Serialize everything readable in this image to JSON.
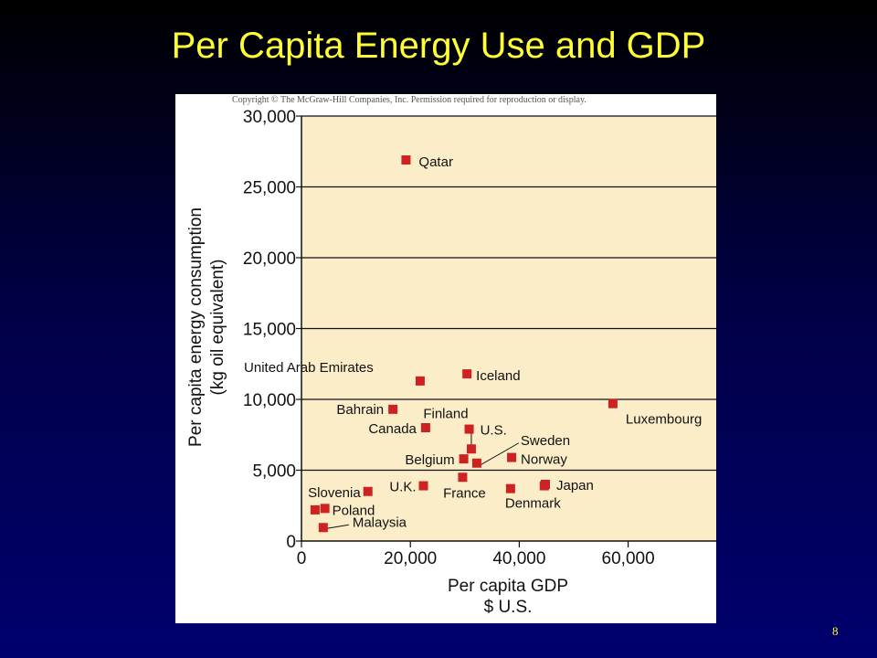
{
  "slide": {
    "title": "Per Capita Energy Use and GDP",
    "page_number": "8"
  },
  "colors": {
    "title": "#ffff33",
    "plot_background": "#fbedc8",
    "marker": "#cc2222",
    "gridline": "#111111"
  },
  "chart_data": {
    "type": "scatter",
    "copyright": "Copyright © The McGraw-Hill Companies, Inc. Permission required for reproduction or display.",
    "xlabel": [
      "Per capita GDP",
      "$ U.S."
    ],
    "ylabel": [
      "Per capita energy consumption",
      "(kg oil equivalent)"
    ],
    "xlim": [
      0,
      80000
    ],
    "ylim": [
      0,
      30000
    ],
    "xticks": [
      0,
      20000,
      40000,
      60000
    ],
    "xtick_labels": [
      "0",
      "20,000",
      "40,000",
      "60,000"
    ],
    "yticks": [
      0,
      5000,
      10000,
      15000,
      20000,
      25000,
      30000
    ],
    "ytick_labels": [
      "0",
      "5,000",
      "10,000",
      "15,000",
      "20,000",
      "25,000",
      "30,000"
    ],
    "grid": "horizontal",
    "points": [
      {
        "label": "Qatar",
        "x": 19200,
        "y": 26900
      },
      {
        "label": "United Arab Emirates",
        "x": 21800,
        "y": 11300
      },
      {
        "label": "Iceland",
        "x": 30400,
        "y": 11800
      },
      {
        "label": "Bahrain",
        "x": 16800,
        "y": 9300
      },
      {
        "label": "Canada",
        "x": 22800,
        "y": 8000
      },
      {
        "label": "Finland",
        "x": 31200,
        "y": 6500
      },
      {
        "label": "U.S.",
        "x": 30800,
        "y": 7900
      },
      {
        "label": "Sweden",
        "x": 32200,
        "y": 5500
      },
      {
        "label": "Belgium",
        "x": 29800,
        "y": 5800
      },
      {
        "label": "Norway",
        "x": 38600,
        "y": 5900
      },
      {
        "label": "U.K.",
        "x": 22400,
        "y": 3900
      },
      {
        "label": "France",
        "x": 29600,
        "y": 4500
      },
      {
        "label": "Denmark",
        "x": 38400,
        "y": 3700
      },
      {
        "label": "Japan",
        "x": 44800,
        "y": 4000
      },
      {
        "label": "Luxembourg",
        "x": 57200,
        "y": 9700
      },
      {
        "label": "Slovenia",
        "x": 12200,
        "y": 3500
      },
      {
        "label": "Poland",
        "x": 4300,
        "y": 2300
      },
      {
        "label": "Malaysia",
        "x": 4000,
        "y": 950
      },
      {
        "label": "",
        "x": 2500,
        "y": 2200
      },
      {
        "label": "",
        "x": 44600,
        "y": 3900
      }
    ]
  }
}
